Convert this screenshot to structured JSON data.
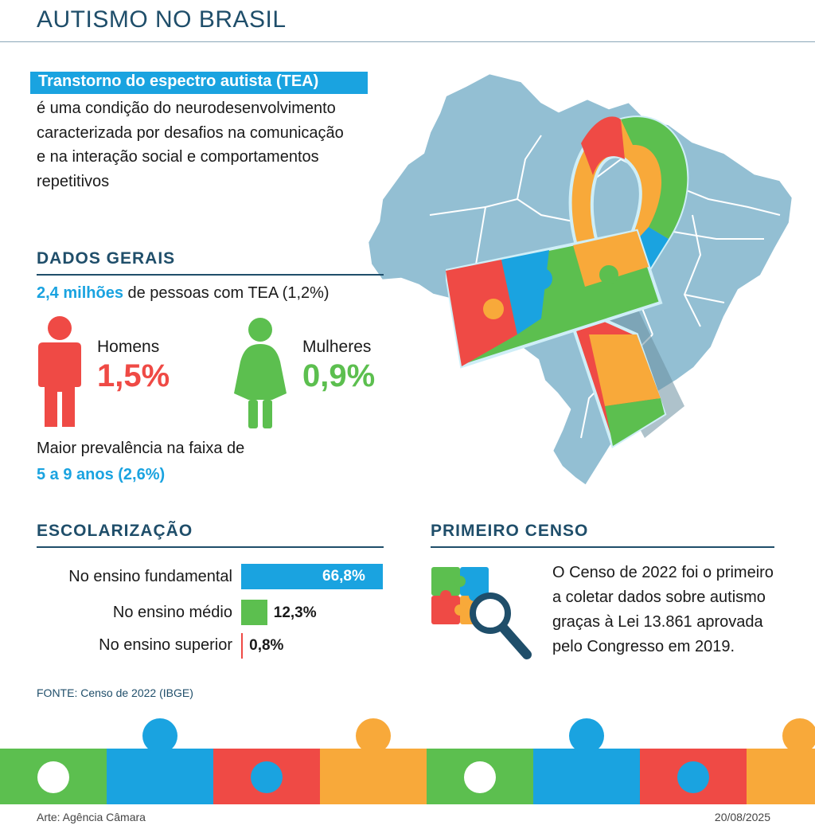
{
  "header": {
    "title": "AUTISMO NO BRASIL"
  },
  "intro": {
    "highlight": "Transtorno do espectro autista (TEA)",
    "text": "é uma condição do neurodesenvolvimento caracterizada por desafios na comunicação e na interação social e comportamentos repetitivos"
  },
  "dados_gerais": {
    "heading": "DADOS GERAIS",
    "total_strong": "2,4 milhões",
    "total_rest": "de pessoas com TEA  (1,2%)",
    "men_label": "Homens",
    "men_pct": "1,5%",
    "women_label": "Mulheres",
    "women_pct": "0,9%",
    "age_line": "Maior prevalência na faixa de",
    "age_strong": "5 a 9 anos (2,6%)"
  },
  "escolarizacao": {
    "heading": "ESCOLARIZAÇÃO",
    "rows": [
      {
        "label": "No ensino fundamental",
        "value": "66,8%",
        "pct": 66.8,
        "color": "#1aa3e0"
      },
      {
        "label": "No ensino médio",
        "value": "12,3%",
        "pct": 12.3,
        "color": "#5cbf4f"
      },
      {
        "label": "No ensino superior",
        "value": "0,8%",
        "pct": 0.8,
        "color": "#ef4a45"
      }
    ]
  },
  "primeiro_censo": {
    "heading": "PRIMEIRO CENSO",
    "text": "O Censo de 2022 foi o primeiro a coletar dados sobre autismo graças à Lei 13.861 aprovada pelo Congresso em 2019."
  },
  "source": "FONTE: Censo de 2022 (IBGE)",
  "footer": {
    "credit": "Arte: Agência Câmara",
    "date": "20/08/2025"
  },
  "colors": {
    "navy": "#1f4e6a",
    "blue": "#1aa3e0",
    "red": "#ef4a45",
    "green": "#5cbf4f",
    "orange": "#f8a93a",
    "map": "#93bfd3"
  },
  "icons": [
    "brazil-map-icon",
    "awareness-ribbon-icon",
    "man-icon",
    "woman-icon",
    "puzzle-magnifier-icon",
    "puzzle-border-icon"
  ]
}
